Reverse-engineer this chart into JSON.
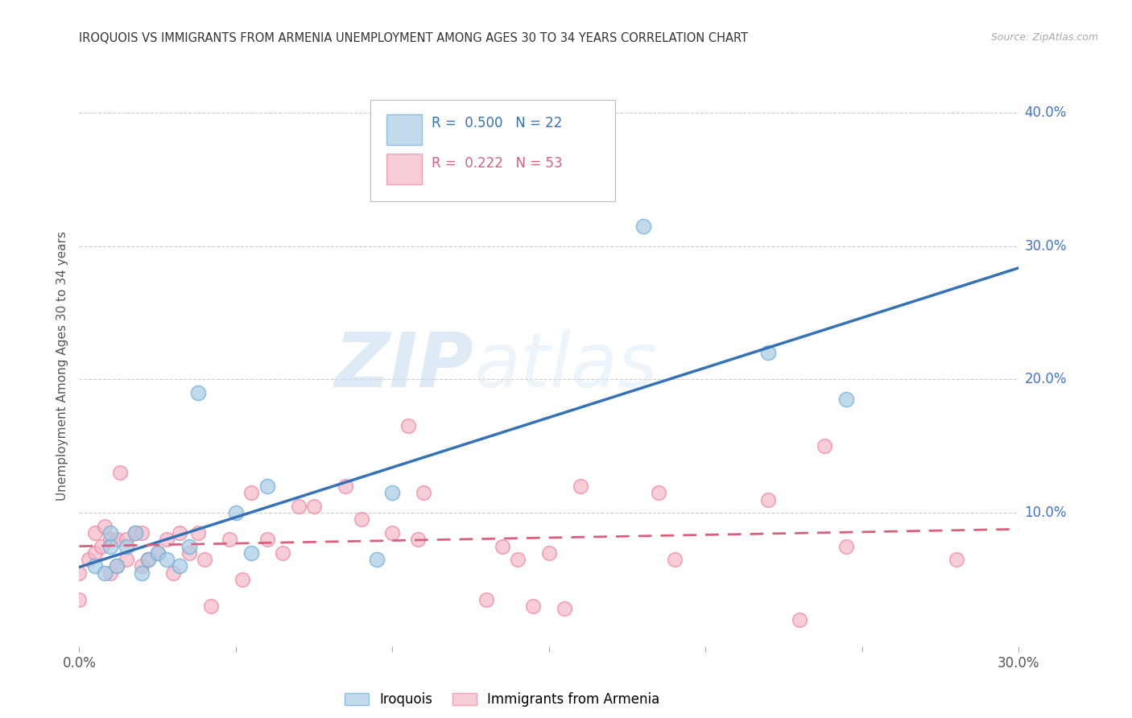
{
  "title": "IROQUOIS VS IMMIGRANTS FROM ARMENIA UNEMPLOYMENT AMONG AGES 30 TO 34 YEARS CORRELATION CHART",
  "source": "Source: ZipAtlas.com",
  "ylabel": "Unemployment Among Ages 30 to 34 years",
  "xlim": [
    0.0,
    0.3
  ],
  "ylim": [
    0.0,
    0.42
  ],
  "right_yticks": [
    0.1,
    0.2,
    0.3,
    0.4
  ],
  "xticks": [
    0.0,
    0.05,
    0.1,
    0.15,
    0.2,
    0.25,
    0.3
  ],
  "xtick_labels": [
    "0.0%",
    "",
    "",
    "",
    "",
    "",
    "30.0%"
  ],
  "right_ytick_labels": [
    "10.0%",
    "20.0%",
    "30.0%",
    "40.0%"
  ],
  "blue_color": "#a8cce4",
  "pink_color": "#f4b8c8",
  "blue_edge_color": "#6aaed6",
  "pink_edge_color": "#f083a0",
  "blue_line_color": "#3572b5",
  "pink_line_color": "#d9607a",
  "legend_blue_r": "0.500",
  "legend_blue_n": "22",
  "legend_pink_r": "0.222",
  "legend_pink_n": "53",
  "legend_label_blue": "Iroquois",
  "legend_label_pink": "Immigrants from Armenia",
  "watermark_zip": "ZIP",
  "watermark_atlas": "atlas",
  "blue_scatter_x": [
    0.005,
    0.008,
    0.01,
    0.01,
    0.012,
    0.015,
    0.018,
    0.02,
    0.022,
    0.025,
    0.028,
    0.032,
    0.035,
    0.038,
    0.05,
    0.055,
    0.06,
    0.095,
    0.1,
    0.18,
    0.22,
    0.245
  ],
  "blue_scatter_y": [
    0.06,
    0.055,
    0.075,
    0.085,
    0.06,
    0.075,
    0.085,
    0.055,
    0.065,
    0.07,
    0.065,
    0.06,
    0.075,
    0.19,
    0.1,
    0.07,
    0.12,
    0.065,
    0.115,
    0.315,
    0.22,
    0.185
  ],
  "pink_scatter_x": [
    0.0,
    0.0,
    0.003,
    0.005,
    0.005,
    0.007,
    0.008,
    0.01,
    0.01,
    0.012,
    0.012,
    0.013,
    0.015,
    0.015,
    0.018,
    0.02,
    0.02,
    0.022,
    0.025,
    0.028,
    0.03,
    0.032,
    0.035,
    0.038,
    0.04,
    0.042,
    0.048,
    0.052,
    0.055,
    0.06,
    0.065,
    0.07,
    0.075,
    0.085,
    0.09,
    0.1,
    0.105,
    0.108,
    0.11,
    0.13,
    0.135,
    0.14,
    0.145,
    0.15,
    0.155,
    0.16,
    0.185,
    0.19,
    0.22,
    0.23,
    0.238,
    0.245,
    0.28
  ],
  "pink_scatter_y": [
    0.055,
    0.035,
    0.065,
    0.07,
    0.085,
    0.075,
    0.09,
    0.055,
    0.08,
    0.06,
    0.08,
    0.13,
    0.065,
    0.08,
    0.085,
    0.06,
    0.085,
    0.065,
    0.07,
    0.08,
    0.055,
    0.085,
    0.07,
    0.085,
    0.065,
    0.03,
    0.08,
    0.05,
    0.115,
    0.08,
    0.07,
    0.105,
    0.105,
    0.12,
    0.095,
    0.085,
    0.165,
    0.08,
    0.115,
    0.035,
    0.075,
    0.065,
    0.03,
    0.07,
    0.028,
    0.12,
    0.115,
    0.065,
    0.11,
    0.02,
    0.15,
    0.075,
    0.065
  ]
}
